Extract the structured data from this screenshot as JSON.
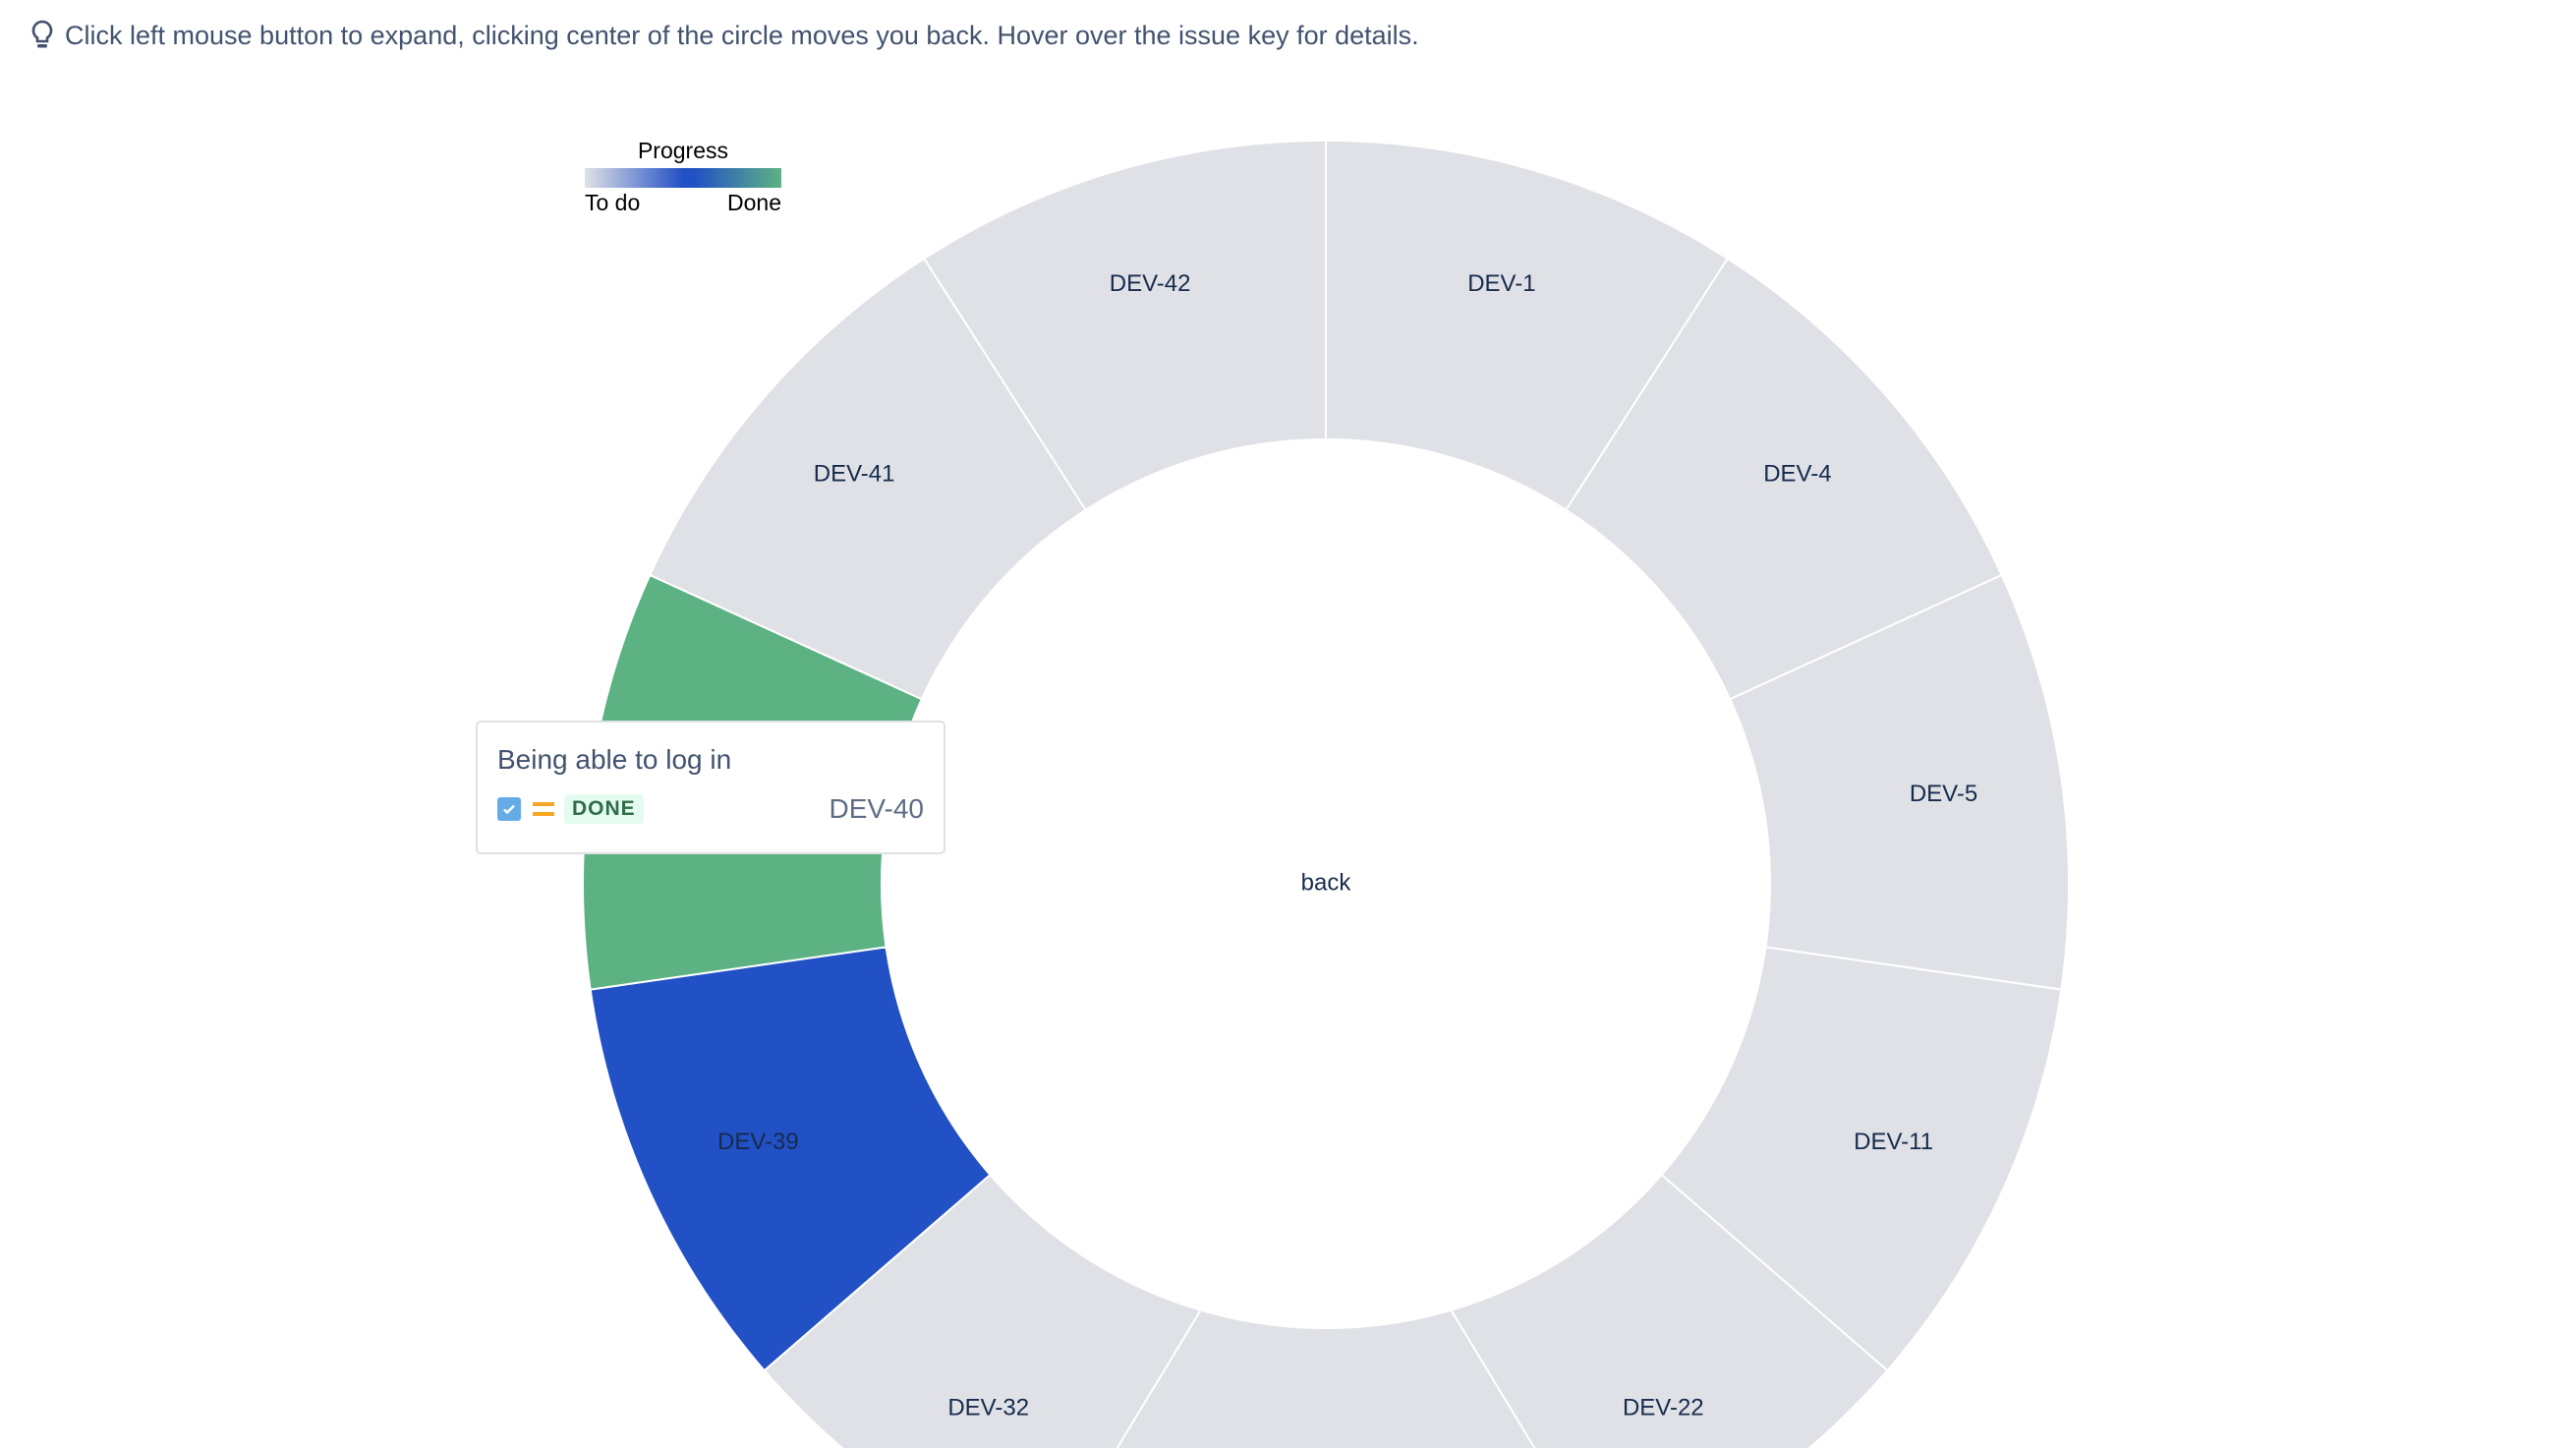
{
  "hint": {
    "icon": "lightbulb-icon",
    "text": "Click left mouse button to expand, clicking center of the circle moves you back. Hover over the issue key for details."
  },
  "legend": {
    "title": "Progress",
    "low_label": "To do",
    "high_label": "Done"
  },
  "center_label": "back",
  "colors": {
    "todo": "#dfe1e6",
    "in_progress": "#2250c5",
    "done": "#5db283"
  },
  "chart_data": {
    "type": "sunburst",
    "segments": [
      {
        "key": "DEV-1",
        "status": "todo"
      },
      {
        "key": "DEV-4",
        "status": "todo"
      },
      {
        "key": "DEV-5",
        "status": "todo"
      },
      {
        "key": "DEV-11",
        "status": "todo"
      },
      {
        "key": "DEV-22",
        "status": "todo"
      },
      {
        "key": "",
        "status": "todo"
      },
      {
        "key": "DEV-32",
        "status": "todo"
      },
      {
        "key": "DEV-39",
        "status": "in_progress"
      },
      {
        "key": "DEV-40",
        "status": "done"
      },
      {
        "key": "DEV-41",
        "status": "todo"
      },
      {
        "key": "DEV-42",
        "status": "todo"
      }
    ]
  },
  "tooltip": {
    "title": "Being able to log in",
    "type_icon": "checkbox-story-icon",
    "priority_icon": "priority-medium-icon",
    "status": "DONE",
    "key": "DEV-40"
  }
}
